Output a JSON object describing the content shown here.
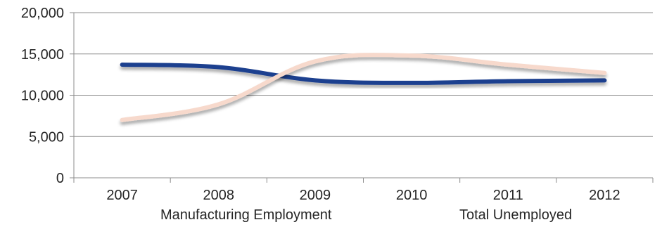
{
  "chart_data": {
    "type": "line",
    "categories": [
      "2007",
      "2008",
      "2009",
      "2010",
      "2011",
      "2012"
    ],
    "series": [
      {
        "name": "Manufacturing Employment",
        "values": [
          13700,
          13400,
          11800,
          11500,
          11700,
          11800
        ],
        "color": "#1f3f8f"
      },
      {
        "name": "Total Unemployed",
        "values": [
          7000,
          8900,
          14100,
          14800,
          13700,
          12700
        ],
        "color": "#f7d9cc"
      }
    ],
    "ylim": [
      0,
      20000
    ],
    "yticks": [
      0,
      5000,
      10000,
      15000,
      20000
    ],
    "ytick_labels": [
      "0",
      "5,000",
      "10,000",
      "15,000",
      "20,000"
    ],
    "grid": true,
    "legend": "bottom",
    "title": "",
    "xlabel": "",
    "ylabel": ""
  }
}
